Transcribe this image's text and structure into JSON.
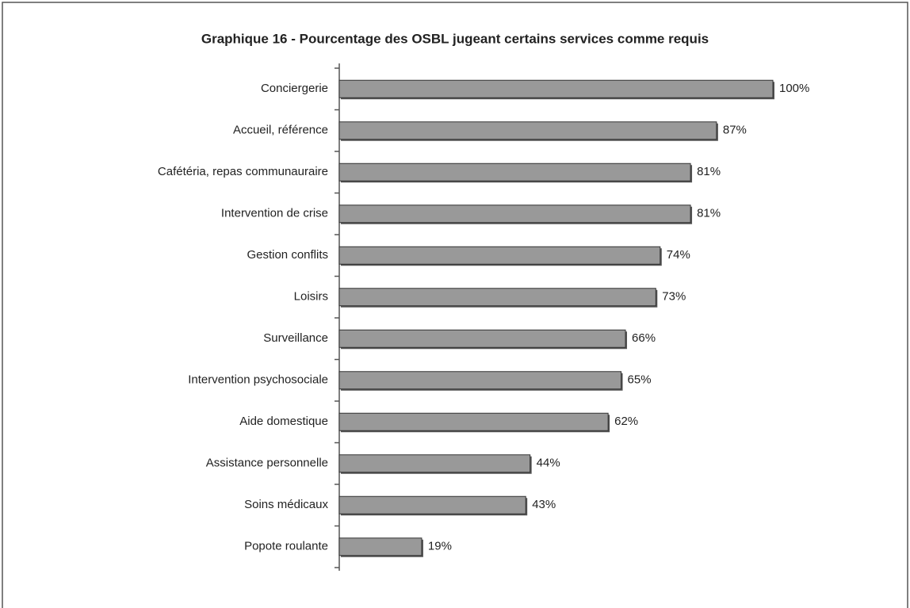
{
  "chart_data": {
    "type": "bar",
    "orientation": "horizontal",
    "title": "Graphique 16 - Pourcentage des OSBL jugeant certains services comme requis",
    "categories": [
      "Conciergerie",
      "Accueil, référence",
      "Cafétéria, repas communauraire",
      "Intervention de crise",
      "Gestion conflits",
      "Loisirs",
      "Surveillance",
      "Intervention psychosociale",
      "Aide domestique",
      "Assistance personnelle",
      "Soins médicaux",
      "Popote roulante"
    ],
    "values": [
      100,
      87,
      81,
      81,
      74,
      73,
      66,
      65,
      62,
      44,
      43,
      19
    ],
    "value_labels": [
      "100%",
      "87%",
      "81%",
      "81%",
      "74%",
      "73%",
      "66%",
      "65%",
      "62%",
      "44%",
      "43%",
      "19%"
    ],
    "color": "#999999",
    "xlim": [
      0,
      100
    ]
  }
}
